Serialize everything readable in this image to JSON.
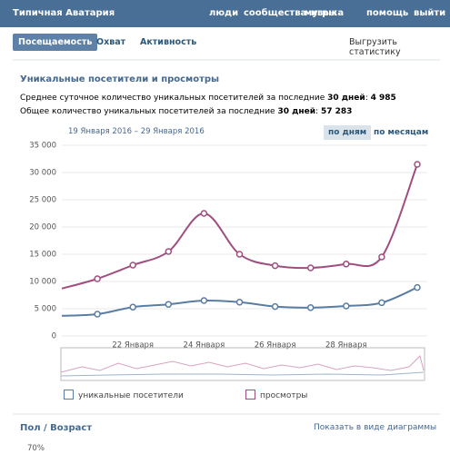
{
  "header": {
    "back": "Типичная Аватария",
    "nav": [
      "люди",
      "сообщества",
      "игры",
      "музыка",
      "помощь",
      "выйти"
    ]
  },
  "tabs": [
    "Посещаемость",
    "Охват",
    "Активность"
  ],
  "export": "Выгрузить статистику",
  "section": {
    "title": "Уникальные посетители и просмотры",
    "line1": {
      "text": "Среднее суточное количество уникальных посетителей за последние",
      "bold": "30 дней",
      "value": "4 985"
    },
    "line2": {
      "text": "Общее количество уникальных посетителей за последние",
      "bold": "30 дней",
      "value": "57 283"
    }
  },
  "range": "19 Января 2016 – 29 Января 2016",
  "period_buttons": [
    "по дням",
    "по месяцам"
  ],
  "chart_data": {
    "type": "line",
    "categories": [
      null,
      null,
      "22 Января",
      null,
      "24 Января",
      null,
      "26 Января",
      null,
      "28 Января",
      null,
      null
    ],
    "series": [
      {
        "name": "уникальные посетители",
        "color": "#597da3",
        "values": [
          3700,
          4000,
          5300,
          5800,
          6500,
          6200,
          5400,
          5200,
          5500,
          6100,
          8900
        ]
      },
      {
        "name": "просмотры",
        "color": "#9e4f7f",
        "values": [
          8700,
          10500,
          13000,
          15500,
          22500,
          15000,
          12900,
          12500,
          13200,
          14500,
          31500
        ]
      }
    ],
    "ylim": [
      0,
      35000
    ],
    "yticks": [
      0,
      {
        "value": 5000,
        "label": "5 000"
      },
      {
        "value": 10000,
        "label": "10 000"
      },
      {
        "value": 15000,
        "label": "15 000"
      },
      {
        "value": 20000,
        "label": "20 000"
      },
      {
        "value": 25000,
        "label": "25 000"
      },
      {
        "value": 30000,
        "label": "30 000"
      },
      {
        "value": 35000,
        "label": "35 000"
      }
    ],
    "grid": true
  },
  "footer": {
    "title": "Пол / Возраст",
    "toggle": "Показать в виде диаграммы",
    "first_value": "70%"
  }
}
